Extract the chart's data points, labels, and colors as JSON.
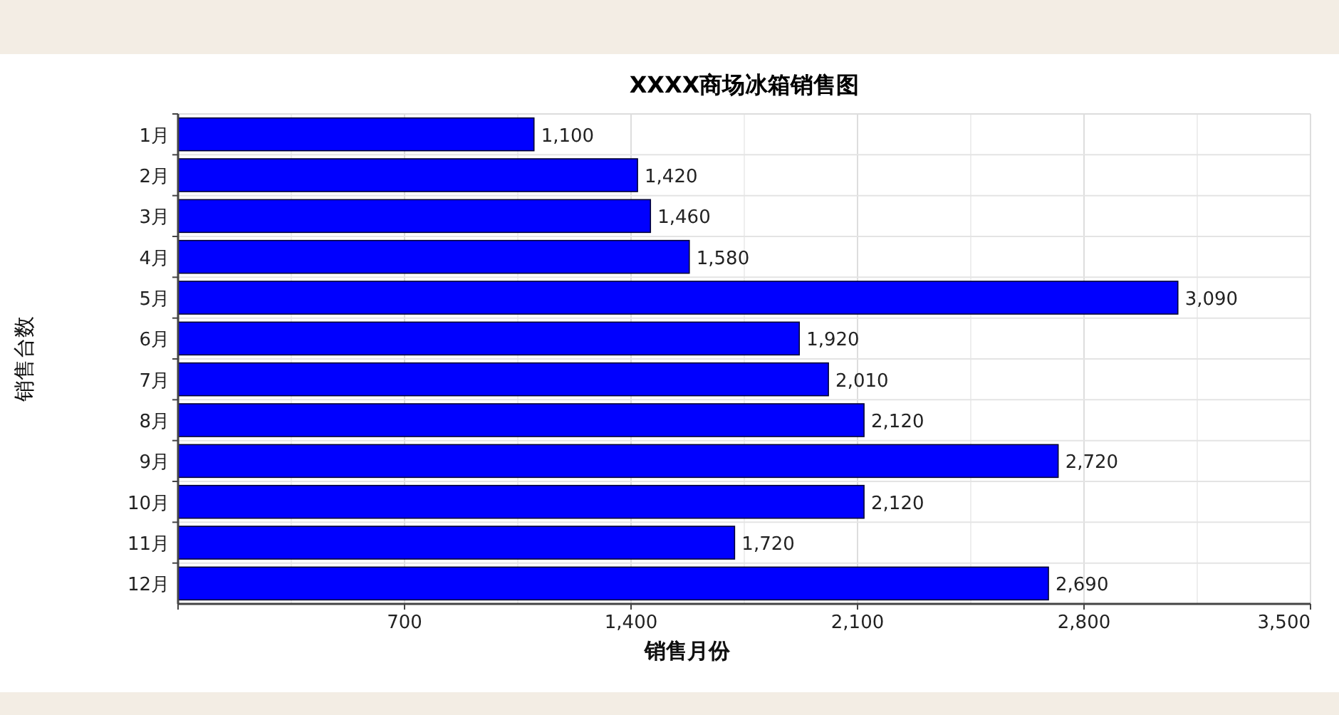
{
  "chart_data": {
    "type": "bar",
    "orientation": "horizontal",
    "title": "XXXX商场冰箱销售图",
    "xlabel": "销售月份",
    "ylabel": "销售台数",
    "categories": [
      "1月",
      "2月",
      "3月",
      "4月",
      "5月",
      "6月",
      "7月",
      "8月",
      "9月",
      "10月",
      "11月",
      "12月"
    ],
    "values": [
      1100,
      1420,
      1460,
      1580,
      3090,
      1920,
      2010,
      2120,
      2720,
      2120,
      1720,
      2690
    ],
    "value_labels": [
      "1,100",
      "1,420",
      "1,460",
      "1,580",
      "3,090",
      "1,920",
      "2,010",
      "2,120",
      "2,720",
      "2,120",
      "1,720",
      "2,690"
    ],
    "color": "#0000ff",
    "grid": true,
    "xlim": [
      0,
      3500
    ],
    "xticks": [
      {
        "value": 0,
        "label": null
      },
      700,
      {
        "value": 1400,
        "label": "1,400"
      },
      {
        "value": 2100,
        "label": "2,100"
      },
      {
        "value": 2800,
        "label": "2,800"
      },
      {
        "value": 3500,
        "label": "3,500"
      }
    ]
  }
}
